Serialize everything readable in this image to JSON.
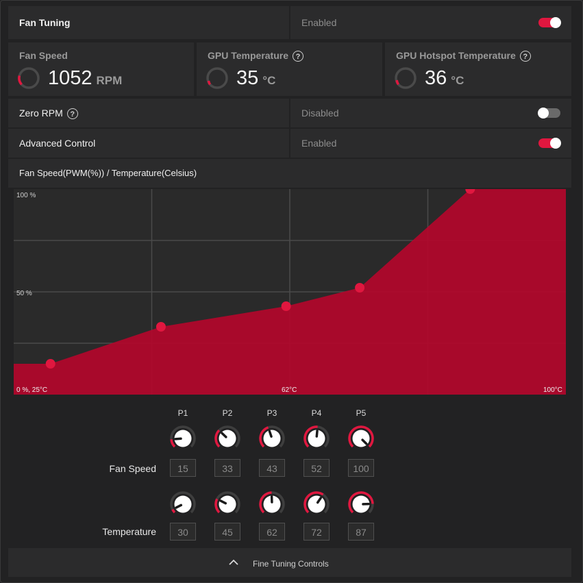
{
  "fan_tuning": {
    "label": "Fan Tuning",
    "status": "Enabled",
    "toggle_on": true
  },
  "metrics": [
    {
      "title": "Fan Speed",
      "value": "1052",
      "unit": "RPM",
      "help": false
    },
    {
      "title": "GPU Temperature",
      "value": "35",
      "unit": "°C",
      "help": true
    },
    {
      "title": "GPU Hotspot Temperature",
      "value": "36",
      "unit": "°C",
      "help": true
    }
  ],
  "zero_rpm": {
    "label": "Zero RPM",
    "status": "Disabled",
    "toggle_on": false
  },
  "advanced_control": {
    "label": "Advanced Control",
    "status": "Enabled",
    "toggle_on": true
  },
  "chart_header": "Fan Speed(PWM(%)) / Temperature(Celsius)",
  "chart_data": {
    "type": "area",
    "x": [
      30,
      45,
      62,
      72,
      87
    ],
    "y": [
      15,
      33,
      43,
      52,
      100
    ],
    "xlim": [
      25,
      100
    ],
    "ylim": [
      0,
      100
    ],
    "labels": {
      "y_top": "100 %",
      "y_mid": "50 %",
      "origin": "0 %, 25°C",
      "x_mid": "62°C",
      "x_max": "100°C"
    },
    "color": "#b3072b",
    "point_color": "#e0173f"
  },
  "points": {
    "headers": [
      "P1",
      "P2",
      "P3",
      "P4",
      "P5"
    ],
    "fan_speed_label": "Fan Speed",
    "temperature_label": "Temperature",
    "fan_speed": [
      "15",
      "33",
      "43",
      "52",
      "100"
    ],
    "temperature": [
      "30",
      "45",
      "62",
      "72",
      "87"
    ]
  },
  "footer": {
    "label": "Fine Tuning Controls"
  }
}
